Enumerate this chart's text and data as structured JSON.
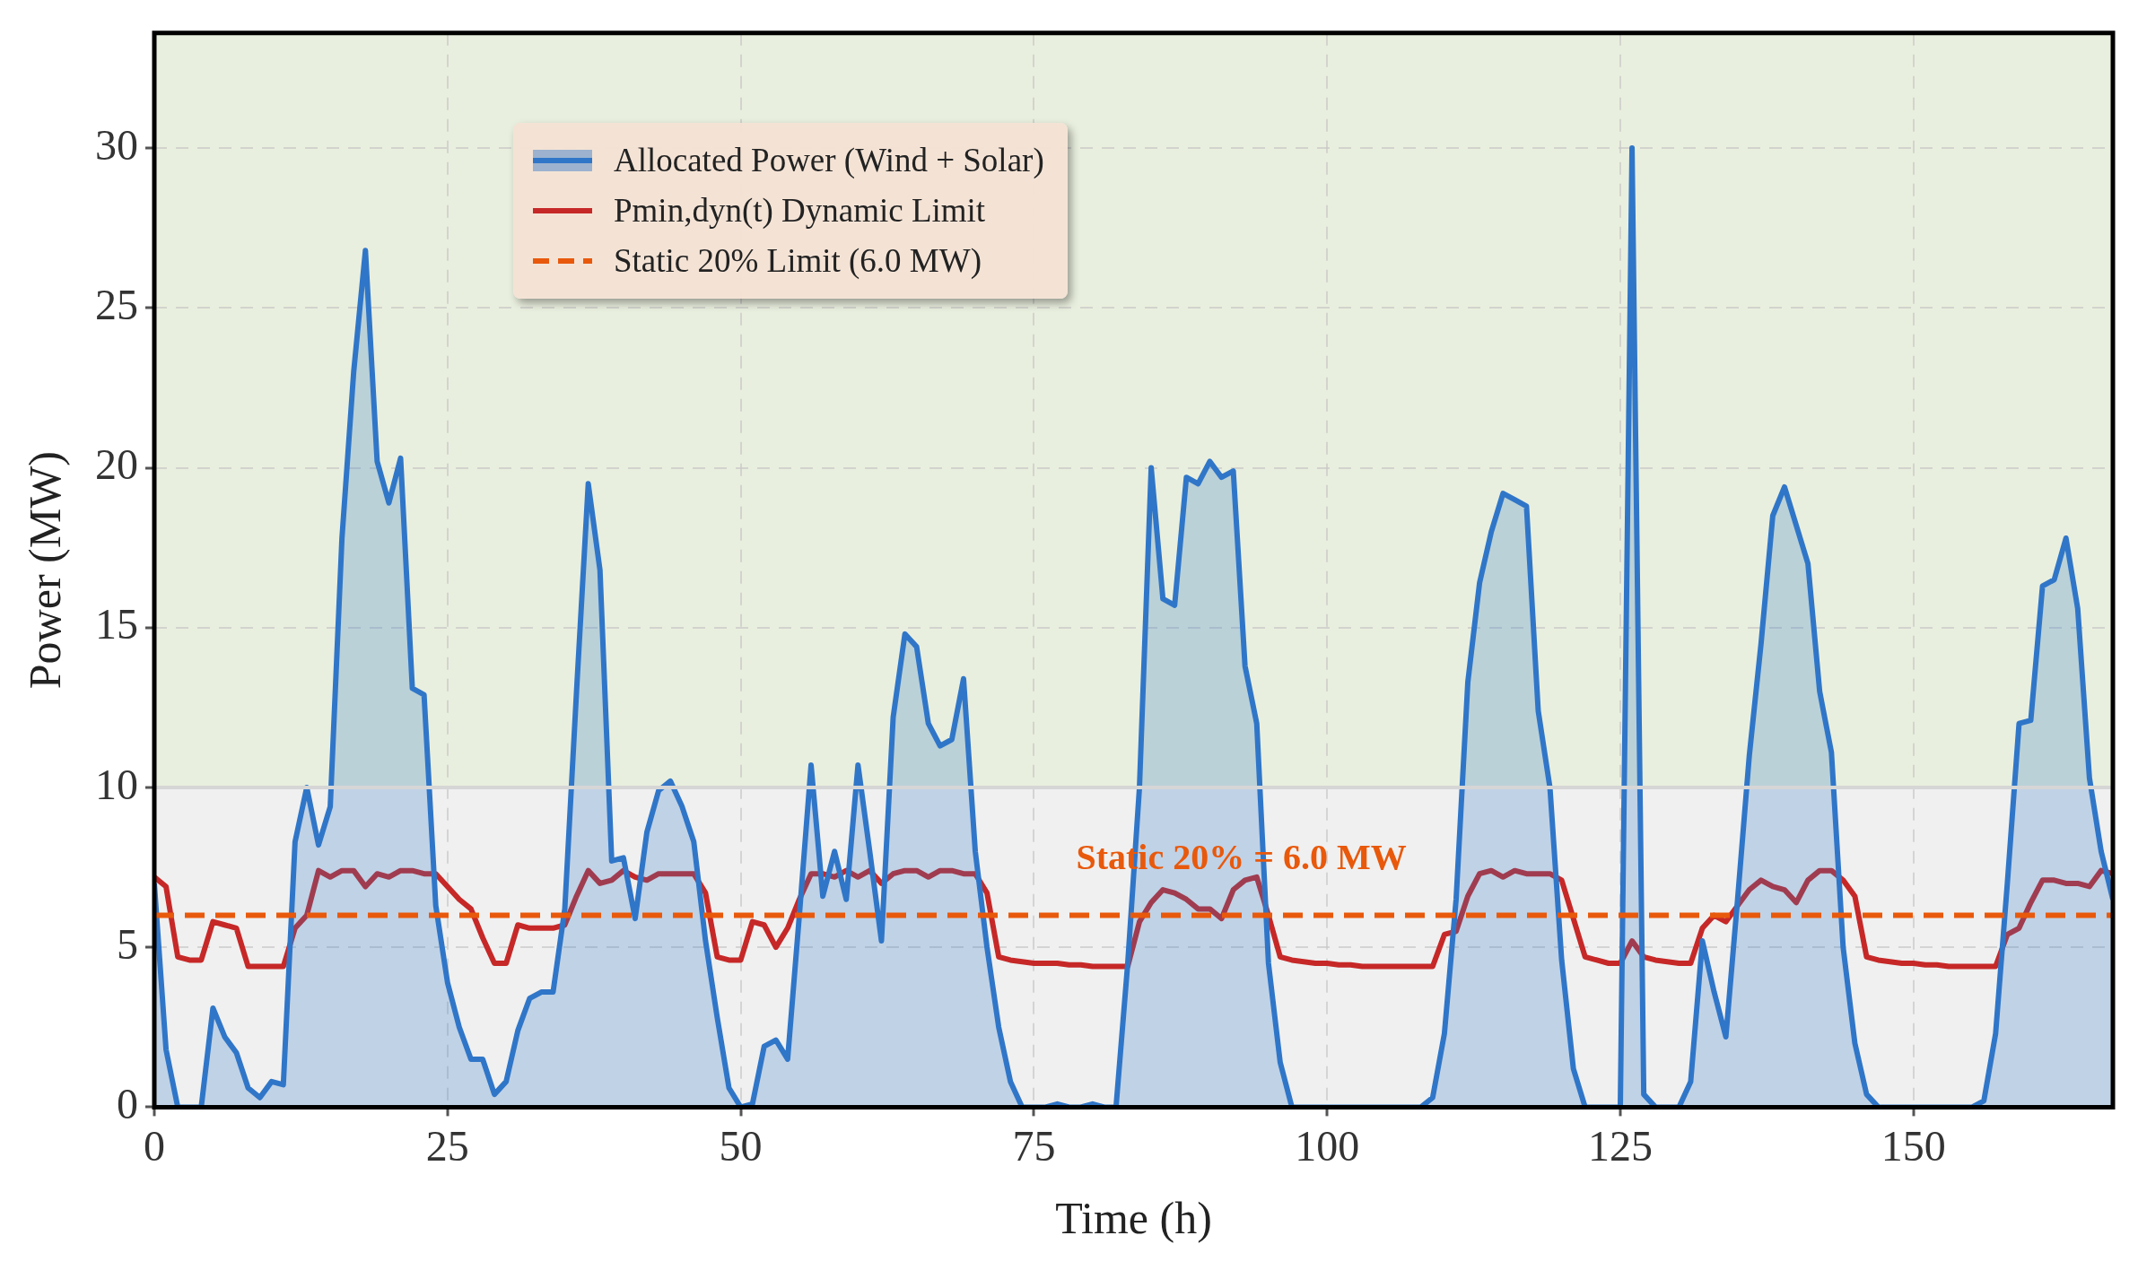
{
  "chart_data": {
    "type": "line",
    "xlabel": "Time (h)",
    "ylabel": "Power (MW)",
    "x": [
      0,
      1,
      2,
      3,
      4,
      5,
      6,
      7,
      8,
      9,
      10,
      11,
      12,
      13,
      14,
      15,
      16,
      17,
      18,
      19,
      20,
      21,
      22,
      23,
      24,
      25,
      26,
      27,
      28,
      29,
      30,
      31,
      32,
      33,
      34,
      35,
      36,
      37,
      38,
      39,
      40,
      41,
      42,
      43,
      44,
      45,
      46,
      47,
      48,
      49,
      50,
      51,
      52,
      53,
      54,
      55,
      56,
      57,
      58,
      59,
      60,
      61,
      62,
      63,
      64,
      65,
      66,
      67,
      68,
      69,
      70,
      71,
      72,
      73,
      74,
      75,
      76,
      77,
      78,
      79,
      80,
      81,
      82,
      83,
      84,
      85,
      86,
      87,
      88,
      89,
      90,
      91,
      92,
      93,
      94,
      95,
      96,
      97,
      98,
      99,
      100,
      101,
      102,
      103,
      104,
      105,
      106,
      107,
      108,
      109,
      110,
      111,
      112,
      113,
      114,
      115,
      116,
      117,
      118,
      119,
      120,
      121,
      122,
      123,
      124,
      125,
      126,
      127,
      128,
      129,
      130,
      131,
      132,
      133,
      134,
      135,
      136,
      137,
      138,
      139,
      140,
      141,
      142,
      143,
      144,
      145,
      146,
      147,
      148,
      149,
      150,
      151,
      152,
      153,
      154,
      155,
      156,
      157,
      158,
      159,
      160,
      161,
      162,
      163,
      164,
      165,
      166,
      167
    ],
    "series": [
      {
        "name": "Allocated Power (Wind + Solar)",
        "type": "area",
        "color": "#3076c8",
        "values": [
          7.0,
          1.8,
          0,
          0,
          0,
          3.1,
          2.2,
          1.7,
          0.6,
          0.3,
          0.8,
          0.7,
          8.3,
          10.0,
          8.2,
          9.4,
          17.8,
          23.0,
          26.8,
          20.2,
          18.9,
          20.3,
          13.1,
          12.9,
          6.3,
          3.9,
          2.5,
          1.5,
          1.5,
          0.4,
          0.8,
          2.4,
          3.4,
          3.6,
          3.6,
          6.2,
          13.0,
          19.5,
          16.8,
          7.7,
          7.8,
          5.9,
          8.6,
          9.9,
          10.2,
          9.4,
          8.3,
          5.2,
          2.8,
          0.6,
          0,
          0.1,
          1.9,
          2.1,
          1.5,
          6.0,
          10.7,
          6.6,
          8.0,
          6.5,
          10.7,
          8.0,
          5.2,
          12.2,
          14.8,
          14.4,
          12.0,
          11.3,
          11.5,
          13.4,
          8.0,
          5.0,
          2.5,
          0.8,
          0,
          0,
          0,
          0.1,
          0,
          0,
          0.1,
          0,
          0,
          4.5,
          10.0,
          20.0,
          15.9,
          15.7,
          19.7,
          19.5,
          20.2,
          19.7,
          19.9,
          13.8,
          12.0,
          4.5,
          1.4,
          0,
          0,
          0,
          0,
          0,
          0,
          0,
          0,
          0,
          0,
          0,
          0,
          0.3,
          2.3,
          6.5,
          13.3,
          16.4,
          18.0,
          19.2,
          19.0,
          18.8,
          12.4,
          10.0,
          4.6,
          1.2,
          0,
          0,
          0,
          0,
          30.0,
          0.4,
          0,
          0,
          0,
          0.8,
          5.2,
          3.6,
          2.2,
          6.5,
          11.0,
          14.5,
          18.5,
          19.4,
          18.2,
          17.0,
          13.0,
          11.1,
          5.0,
          2.0,
          0.4,
          0,
          0,
          0,
          0,
          0,
          0,
          0,
          0,
          0,
          0.2,
          2.3,
          7.0,
          12.0,
          12.1,
          16.3,
          16.5,
          17.8,
          15.6,
          10.3,
          8.0,
          6.5
        ]
      },
      {
        "name": "Pmin,dyn(t) Dynamic Limit",
        "type": "line",
        "color": "#c62828",
        "values": [
          7.2,
          6.9,
          4.7,
          4.6,
          4.6,
          5.8,
          5.7,
          5.6,
          4.4,
          4.4,
          4.4,
          4.4,
          5.6,
          6.0,
          7.4,
          7.2,
          7.4,
          7.4,
          6.9,
          7.3,
          7.2,
          7.4,
          7.4,
          7.3,
          7.3,
          6.9,
          6.5,
          6.2,
          5.3,
          4.5,
          4.5,
          5.7,
          5.6,
          5.6,
          5.6,
          5.7,
          6.6,
          7.4,
          7.0,
          7.1,
          7.4,
          7.2,
          7.1,
          7.3,
          7.3,
          7.3,
          7.3,
          6.7,
          4.7,
          4.6,
          4.6,
          5.8,
          5.7,
          5.0,
          5.6,
          6.5,
          7.3,
          7.3,
          7.2,
          7.4,
          7.2,
          7.4,
          7.0,
          7.3,
          7.4,
          7.4,
          7.2,
          7.4,
          7.4,
          7.3,
          7.3,
          6.7,
          4.7,
          4.6,
          4.55,
          4.5,
          4.5,
          4.5,
          4.45,
          4.45,
          4.4,
          4.4,
          4.4,
          4.4,
          5.8,
          6.4,
          6.8,
          6.7,
          6.5,
          6.2,
          6.2,
          5.9,
          6.8,
          7.1,
          7.2,
          6.0,
          4.7,
          4.6,
          4.55,
          4.5,
          4.5,
          4.45,
          4.45,
          4.4,
          4.4,
          4.4,
          4.4,
          4.4,
          4.4,
          4.4,
          5.4,
          5.5,
          6.6,
          7.3,
          7.4,
          7.2,
          7.4,
          7.3,
          7.3,
          7.3,
          7.1,
          5.9,
          4.7,
          4.6,
          4.5,
          4.5,
          5.2,
          4.7,
          4.6,
          4.55,
          4.5,
          4.5,
          5.6,
          6.0,
          5.8,
          6.3,
          6.8,
          7.1,
          6.9,
          6.8,
          6.4,
          7.1,
          7.4,
          7.4,
          7.1,
          6.6,
          4.7,
          4.6,
          4.55,
          4.5,
          4.5,
          4.45,
          4.45,
          4.4,
          4.4,
          4.4,
          4.4,
          4.4,
          5.4,
          5.6,
          6.4,
          7.1,
          7.1,
          7.0,
          7.0,
          6.9,
          7.4,
          7.3
        ]
      }
    ],
    "ref_lines": [
      {
        "axis": "y",
        "value": 6.0,
        "label": "Static 20% Limit (6.0 MW)",
        "color": "#e8590c",
        "line_style": "dashed"
      },
      {
        "axis": "y",
        "value": 10,
        "color": "#d6d6d6",
        "line_style": "solid"
      }
    ],
    "bands": [
      {
        "axis": "y",
        "from": 0,
        "to": 10,
        "color": "#f0f0f0"
      }
    ],
    "annotations": [
      "Static 20% = 6.0 MW"
    ],
    "xlim": [
      0,
      167
    ],
    "xticks": [
      0,
      25,
      50,
      75,
      100,
      125,
      150
    ],
    "ylim": [
      0,
      33.6
    ],
    "yticks": [
      0,
      5,
      10,
      15,
      20,
      25,
      30
    ],
    "grid": true,
    "legend": "top left",
    "line_style": "solid",
    "marker": "none"
  }
}
